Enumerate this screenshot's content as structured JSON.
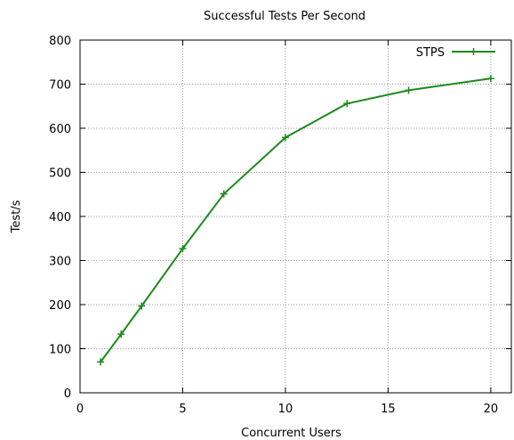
{
  "chart_data": {
    "type": "line",
    "title": "Successful Tests Per Second",
    "xlabel": "Concurrent Users",
    "ylabel": "Test/s",
    "xlim": [
      0,
      21
    ],
    "ylim": [
      0,
      800
    ],
    "xticks": [
      0,
      5,
      10,
      15,
      20
    ],
    "yticks": [
      0,
      100,
      200,
      300,
      400,
      500,
      600,
      700,
      800
    ],
    "grid": true,
    "legend_position": "top-right",
    "series": [
      {
        "name": "STPS",
        "color": "#1a8a1a",
        "marker": "plus",
        "x": [
          1,
          2,
          3,
          5,
          7,
          10,
          13,
          16,
          20
        ],
        "y": [
          70,
          133,
          197,
          327,
          451,
          579,
          656,
          686,
          713
        ]
      }
    ]
  }
}
